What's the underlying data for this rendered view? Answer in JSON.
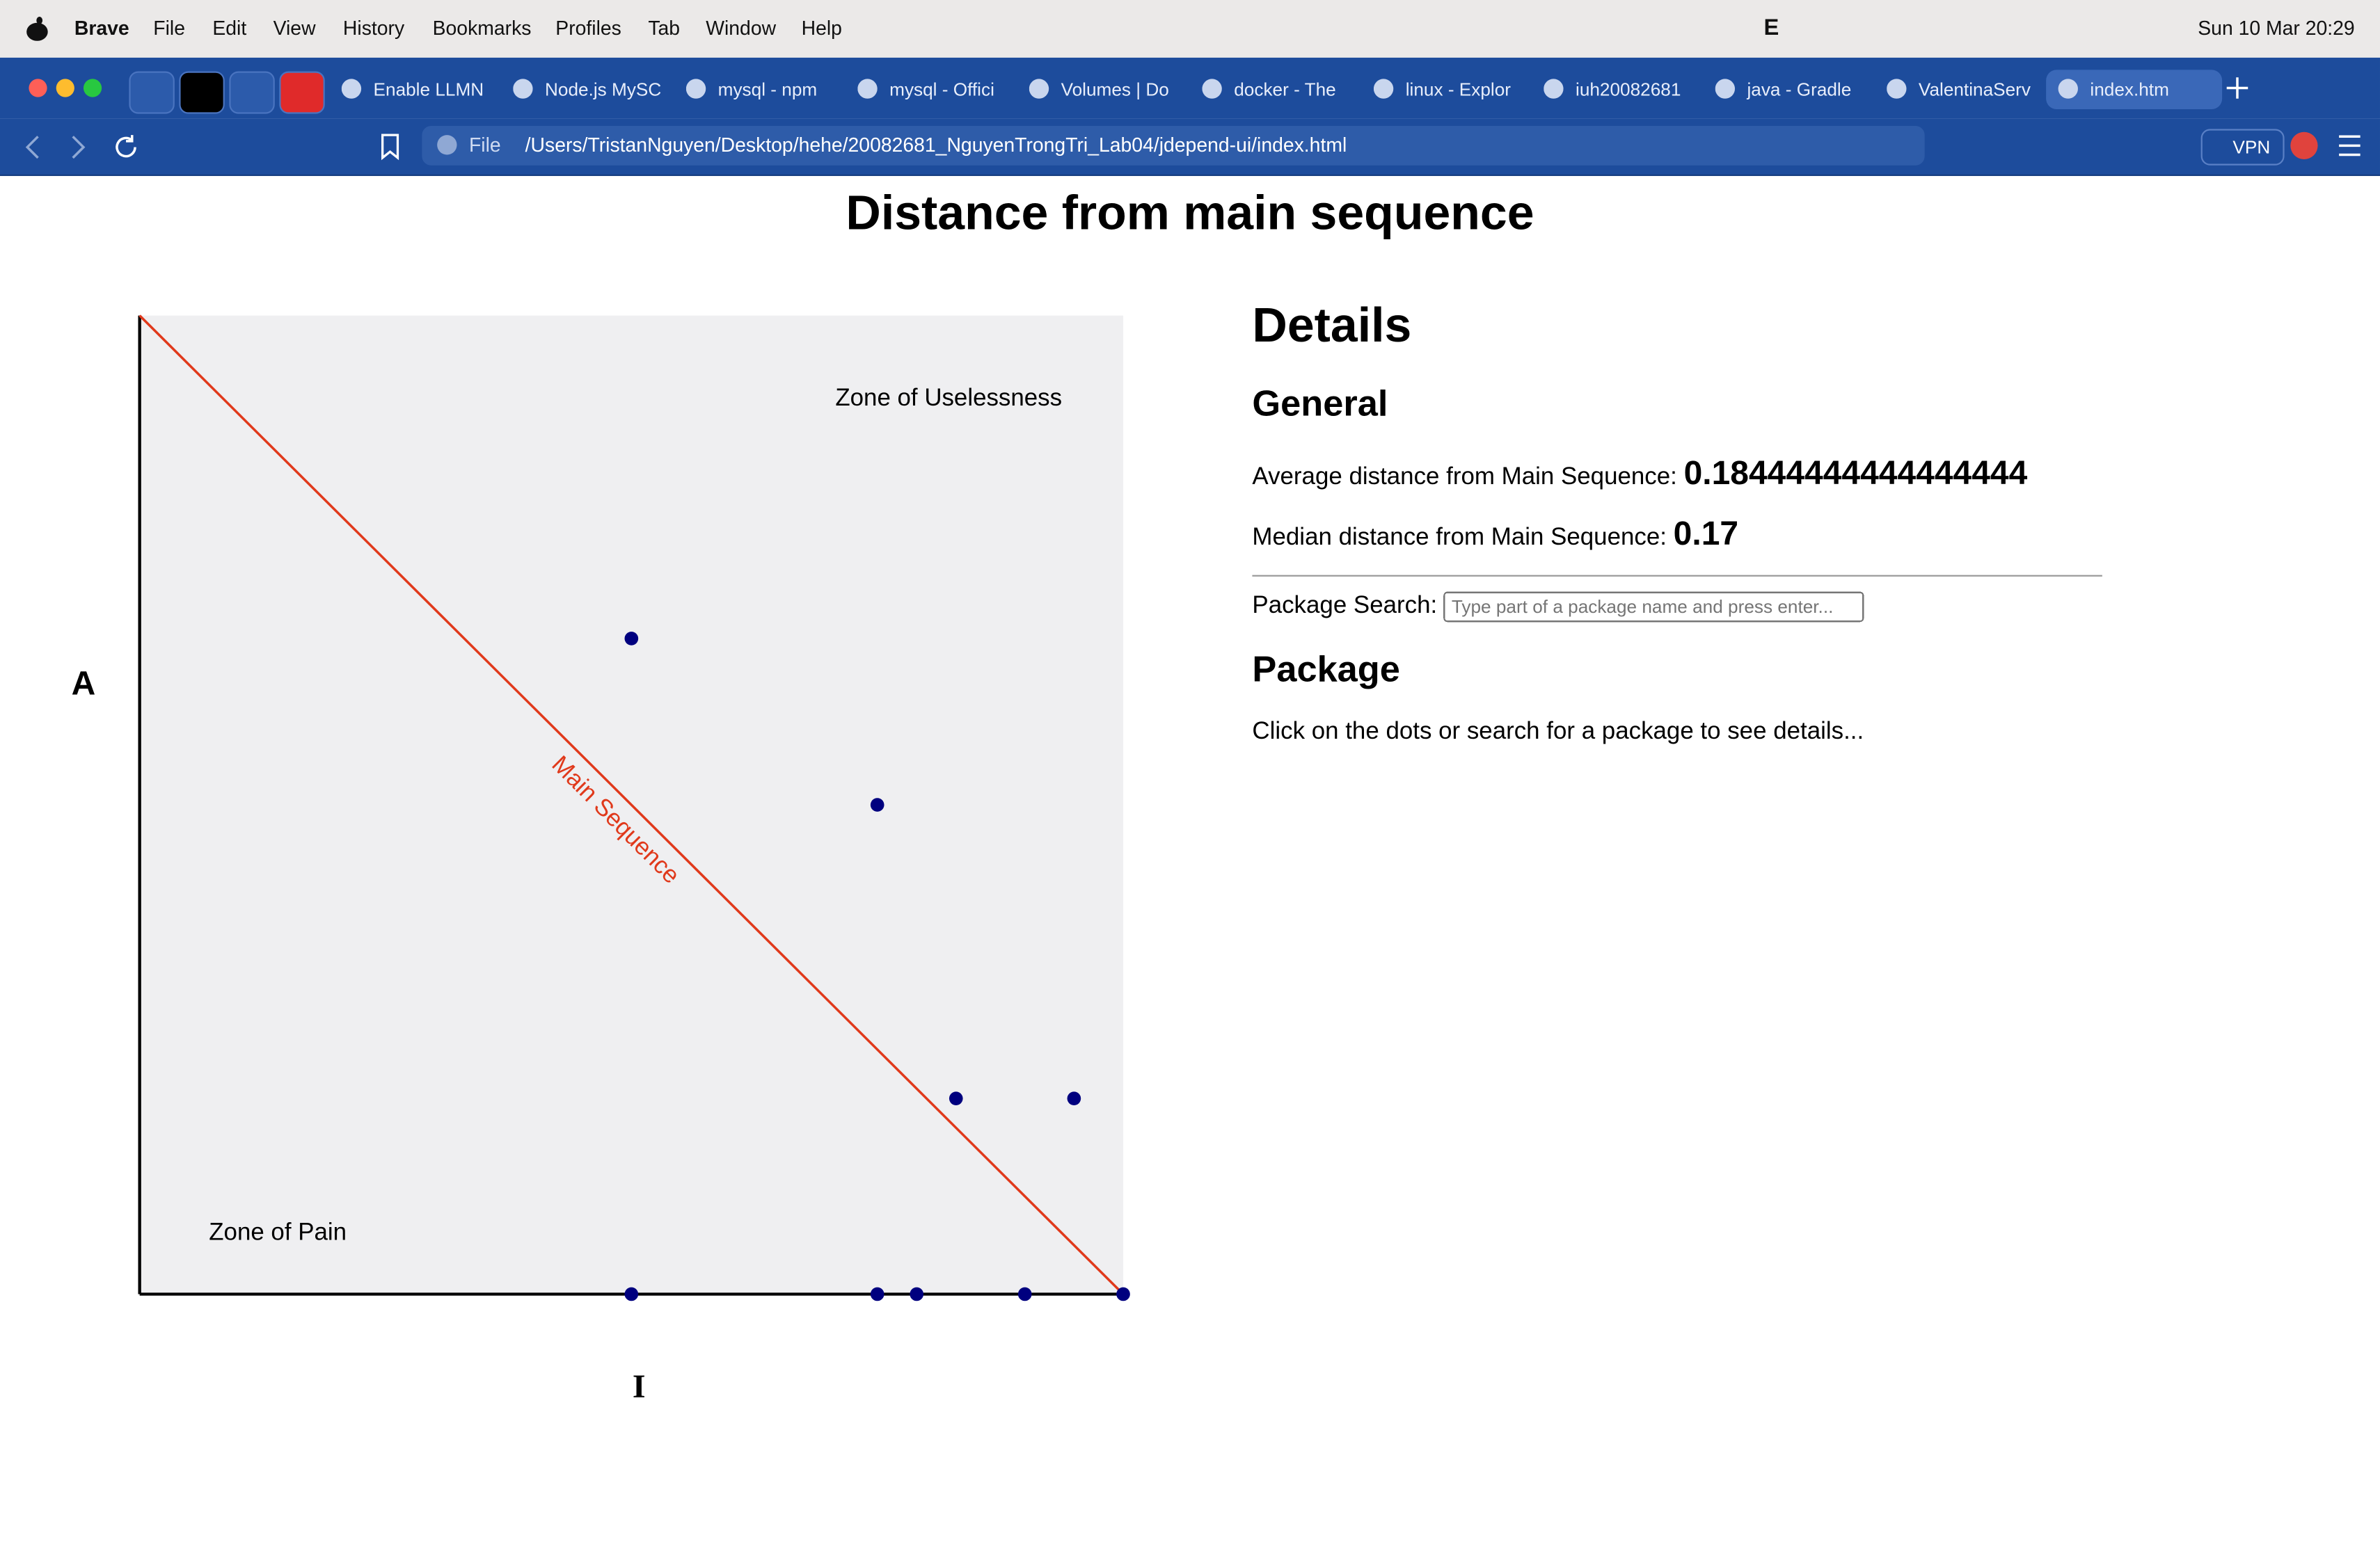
{
  "menu_bar": {
    "app": "Brave",
    "items": [
      "File",
      "Edit",
      "View",
      "History",
      "Bookmarks",
      "Profiles",
      "Tab",
      "Window",
      "Help"
    ],
    "status_letter": "E",
    "clock": "Sun 10 Mar  20:29"
  },
  "tabs": [
    "Enable LLMN",
    "Node.js MySC",
    "mysql - npm",
    "mysql - Offici",
    "Volumes | Do",
    "docker - The",
    "linux - Explor",
    "iuh20082681",
    "java - Gradle",
    "ValentinaServ",
    "index.htm"
  ],
  "address_bar": {
    "scheme": "File",
    "url": "/Users/TristanNguyen/Desktop/hehe/20082681_NguyenTrongTri_Lab04/jdepend-ui/index.html",
    "vpn": "VPN"
  },
  "page": {
    "title": "Distance from main sequence",
    "details": {
      "heading": "Details",
      "general": "General",
      "average_label": "Average distance from Main Sequence:",
      "average": "0.18444444444444444",
      "median_label": "Median distance from Main Sequence:",
      "median": "0.17",
      "search_label": "Package Search:",
      "search_placeholder": "Type part of a package name and press enter...",
      "package": "Package",
      "hint": "Click on the dots or search for a package to see details..."
    }
  },
  "chart_data": {
    "type": "scatter",
    "x_label": "I",
    "y_label": "A",
    "annotations": [
      "Zone of Uselessness",
      "Zone of Pain",
      "Main Sequence"
    ],
    "x": [
      0.5,
      0.75,
      0.83,
      0.95,
      0.5,
      0.75,
      0.79,
      0.9,
      1
    ],
    "values": [
      0.67,
      0.5,
      0.2,
      0.2,
      0,
      0,
      0,
      0,
      0
    ],
    "color": "#00007f",
    "line_color": "#e0391b",
    "background": "#efeff1",
    "xlim": [
      0,
      1
    ],
    "ylim": [
      0,
      1
    ]
  }
}
